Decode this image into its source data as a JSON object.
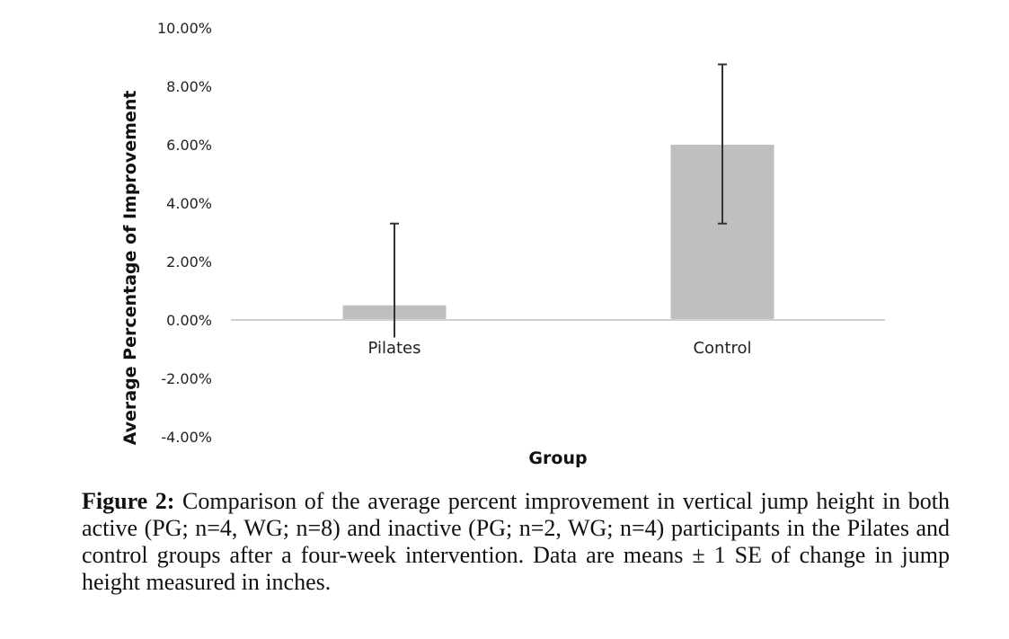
{
  "chart_data": {
    "type": "bar",
    "title": "",
    "xlabel": "Group",
    "ylabel": "Average Percentage of Improvement",
    "categories": [
      "Pilates",
      "Control"
    ],
    "values": [
      0.5,
      6.0
    ],
    "error_upper": [
      3.3,
      8.75
    ],
    "error_lower": [
      -0.6,
      3.3
    ],
    "ylim": [
      -4,
      10
    ],
    "yticks": [
      10,
      8,
      6,
      4,
      2,
      0,
      -2,
      -4
    ],
    "ytick_labels": [
      "10.00%",
      "8.00%",
      "6.00%",
      "4.00%",
      "2.00%",
      "0.00%",
      "-2.00%",
      "-4.00%"
    ],
    "grid": false,
    "bar_color": "#bfbfbf",
    "error_color": "#333333"
  },
  "caption": {
    "label": "Figure 2:",
    "text": " Comparison of the average percent improvement in vertical jump height in both active (PG; n=4, WG; n=8) and inactive (PG; n=2, WG; n=4) participants in the Pilates and control groups after a four-week intervention. Data are means ± 1 SE of change in jump height measured in inches."
  }
}
